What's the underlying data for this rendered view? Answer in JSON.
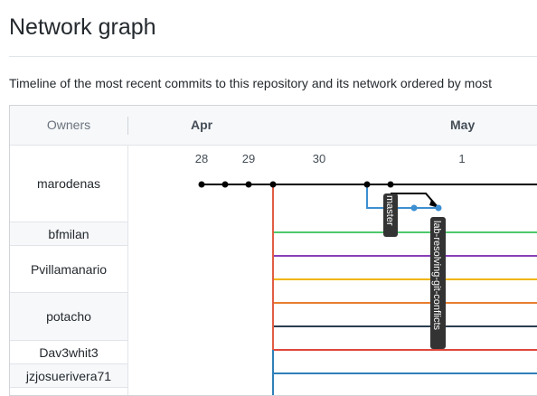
{
  "page": {
    "title": "Network graph",
    "description": "Timeline of the most recent commits to this repository and its network ordered by most"
  },
  "graph": {
    "owners_header": "Owners",
    "months": [
      "Apr",
      "May"
    ],
    "days": [
      "28",
      "29",
      "30",
      "1"
    ],
    "owners": [
      "marodenas",
      "bfmilan",
      "Pvillamanario",
      "potacho",
      "Dav3whit3",
      "jzjosuerivera71"
    ],
    "branches": [
      "master",
      "lab-resolving-git-conflicts"
    ],
    "colors": {
      "main": "#000000",
      "fork_blue": "#3d8fd1",
      "trunk_red": "#e05d44",
      "green": "#4dc96b",
      "purple": "#8a3fb8",
      "yellow": "#f0b400",
      "orange": "#e87e2e",
      "navy": "#2c3e50",
      "red": "#e0463b",
      "teal": "#2f80b8"
    }
  }
}
